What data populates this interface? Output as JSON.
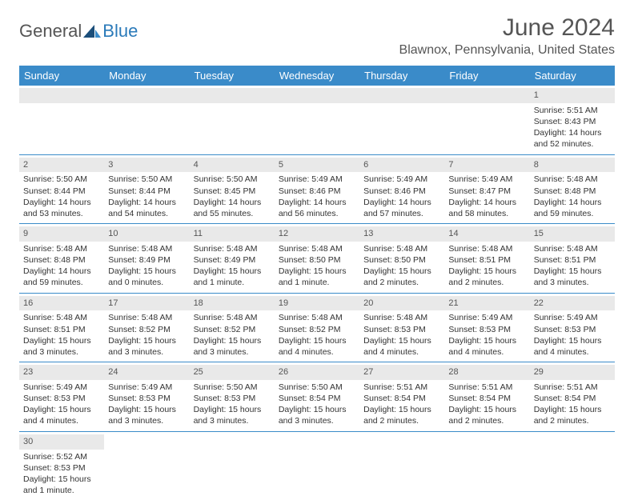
{
  "logo": {
    "part1": "General",
    "part2": "Blue"
  },
  "title": "June 2024",
  "location": "Blawnox, Pennsylvania, United States",
  "colors": {
    "header_bg": "#3a8bc9",
    "header_text": "#ffffff",
    "daynum_bg": "#e9e9e9",
    "row_border": "#3a8bc9",
    "text": "#333333",
    "logo_gray": "#555555",
    "logo_blue": "#2a7ab9"
  },
  "day_headers": [
    "Sunday",
    "Monday",
    "Tuesday",
    "Wednesday",
    "Thursday",
    "Friday",
    "Saturday"
  ],
  "weeks": [
    [
      {
        "empty": true
      },
      {
        "empty": true
      },
      {
        "empty": true
      },
      {
        "empty": true
      },
      {
        "empty": true
      },
      {
        "empty": true
      },
      {
        "num": "1",
        "sunrise": "Sunrise: 5:51 AM",
        "sunset": "Sunset: 8:43 PM",
        "daylight": "Daylight: 14 hours and 52 minutes."
      }
    ],
    [
      {
        "num": "2",
        "sunrise": "Sunrise: 5:50 AM",
        "sunset": "Sunset: 8:44 PM",
        "daylight": "Daylight: 14 hours and 53 minutes."
      },
      {
        "num": "3",
        "sunrise": "Sunrise: 5:50 AM",
        "sunset": "Sunset: 8:44 PM",
        "daylight": "Daylight: 14 hours and 54 minutes."
      },
      {
        "num": "4",
        "sunrise": "Sunrise: 5:50 AM",
        "sunset": "Sunset: 8:45 PM",
        "daylight": "Daylight: 14 hours and 55 minutes."
      },
      {
        "num": "5",
        "sunrise": "Sunrise: 5:49 AM",
        "sunset": "Sunset: 8:46 PM",
        "daylight": "Daylight: 14 hours and 56 minutes."
      },
      {
        "num": "6",
        "sunrise": "Sunrise: 5:49 AM",
        "sunset": "Sunset: 8:46 PM",
        "daylight": "Daylight: 14 hours and 57 minutes."
      },
      {
        "num": "7",
        "sunrise": "Sunrise: 5:49 AM",
        "sunset": "Sunset: 8:47 PM",
        "daylight": "Daylight: 14 hours and 58 minutes."
      },
      {
        "num": "8",
        "sunrise": "Sunrise: 5:48 AM",
        "sunset": "Sunset: 8:48 PM",
        "daylight": "Daylight: 14 hours and 59 minutes."
      }
    ],
    [
      {
        "num": "9",
        "sunrise": "Sunrise: 5:48 AM",
        "sunset": "Sunset: 8:48 PM",
        "daylight": "Daylight: 14 hours and 59 minutes."
      },
      {
        "num": "10",
        "sunrise": "Sunrise: 5:48 AM",
        "sunset": "Sunset: 8:49 PM",
        "daylight": "Daylight: 15 hours and 0 minutes."
      },
      {
        "num": "11",
        "sunrise": "Sunrise: 5:48 AM",
        "sunset": "Sunset: 8:49 PM",
        "daylight": "Daylight: 15 hours and 1 minute."
      },
      {
        "num": "12",
        "sunrise": "Sunrise: 5:48 AM",
        "sunset": "Sunset: 8:50 PM",
        "daylight": "Daylight: 15 hours and 1 minute."
      },
      {
        "num": "13",
        "sunrise": "Sunrise: 5:48 AM",
        "sunset": "Sunset: 8:50 PM",
        "daylight": "Daylight: 15 hours and 2 minutes."
      },
      {
        "num": "14",
        "sunrise": "Sunrise: 5:48 AM",
        "sunset": "Sunset: 8:51 PM",
        "daylight": "Daylight: 15 hours and 2 minutes."
      },
      {
        "num": "15",
        "sunrise": "Sunrise: 5:48 AM",
        "sunset": "Sunset: 8:51 PM",
        "daylight": "Daylight: 15 hours and 3 minutes."
      }
    ],
    [
      {
        "num": "16",
        "sunrise": "Sunrise: 5:48 AM",
        "sunset": "Sunset: 8:51 PM",
        "daylight": "Daylight: 15 hours and 3 minutes."
      },
      {
        "num": "17",
        "sunrise": "Sunrise: 5:48 AM",
        "sunset": "Sunset: 8:52 PM",
        "daylight": "Daylight: 15 hours and 3 minutes."
      },
      {
        "num": "18",
        "sunrise": "Sunrise: 5:48 AM",
        "sunset": "Sunset: 8:52 PM",
        "daylight": "Daylight: 15 hours and 3 minutes."
      },
      {
        "num": "19",
        "sunrise": "Sunrise: 5:48 AM",
        "sunset": "Sunset: 8:52 PM",
        "daylight": "Daylight: 15 hours and 4 minutes."
      },
      {
        "num": "20",
        "sunrise": "Sunrise: 5:48 AM",
        "sunset": "Sunset: 8:53 PM",
        "daylight": "Daylight: 15 hours and 4 minutes."
      },
      {
        "num": "21",
        "sunrise": "Sunrise: 5:49 AM",
        "sunset": "Sunset: 8:53 PM",
        "daylight": "Daylight: 15 hours and 4 minutes."
      },
      {
        "num": "22",
        "sunrise": "Sunrise: 5:49 AM",
        "sunset": "Sunset: 8:53 PM",
        "daylight": "Daylight: 15 hours and 4 minutes."
      }
    ],
    [
      {
        "num": "23",
        "sunrise": "Sunrise: 5:49 AM",
        "sunset": "Sunset: 8:53 PM",
        "daylight": "Daylight: 15 hours and 4 minutes."
      },
      {
        "num": "24",
        "sunrise": "Sunrise: 5:49 AM",
        "sunset": "Sunset: 8:53 PM",
        "daylight": "Daylight: 15 hours and 3 minutes."
      },
      {
        "num": "25",
        "sunrise": "Sunrise: 5:50 AM",
        "sunset": "Sunset: 8:53 PM",
        "daylight": "Daylight: 15 hours and 3 minutes."
      },
      {
        "num": "26",
        "sunrise": "Sunrise: 5:50 AM",
        "sunset": "Sunset: 8:54 PM",
        "daylight": "Daylight: 15 hours and 3 minutes."
      },
      {
        "num": "27",
        "sunrise": "Sunrise: 5:51 AM",
        "sunset": "Sunset: 8:54 PM",
        "daylight": "Daylight: 15 hours and 2 minutes."
      },
      {
        "num": "28",
        "sunrise": "Sunrise: 5:51 AM",
        "sunset": "Sunset: 8:54 PM",
        "daylight": "Daylight: 15 hours and 2 minutes."
      },
      {
        "num": "29",
        "sunrise": "Sunrise: 5:51 AM",
        "sunset": "Sunset: 8:54 PM",
        "daylight": "Daylight: 15 hours and 2 minutes."
      }
    ],
    [
      {
        "num": "30",
        "sunrise": "Sunrise: 5:52 AM",
        "sunset": "Sunset: 8:53 PM",
        "daylight": "Daylight: 15 hours and 1 minute."
      },
      {
        "empty": true
      },
      {
        "empty": true
      },
      {
        "empty": true
      },
      {
        "empty": true
      },
      {
        "empty": true
      },
      {
        "empty": true
      }
    ]
  ]
}
